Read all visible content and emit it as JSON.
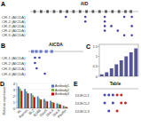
{
  "chart_data": [
    {
      "type": "track",
      "annotations": [
        "A"
      ],
      "title": "AID",
      "xlim": [
        0,
        10
      ],
      "exons": [
        0.3,
        0.9,
        1.5,
        2.1,
        2.7,
        3.3,
        3.9,
        4.5,
        5.1,
        5.7,
        6.3,
        6.9,
        7.5,
        8.1,
        8.7,
        9.2
      ],
      "exon_width": 0.22,
      "exon_color": "#555555",
      "categories": [
        "CR-1 (AICDA)",
        "CR-2 (AICDA)",
        "CR-3 (AICDA)",
        "CR-4 (AICDA)",
        "CR-5 (AICDA)"
      ],
      "series": [
        {
          "color": "#4444aa",
          "x": [
            [
              3.3,
              5.1,
              6.9,
              8.7,
              9.4
            ],
            [
              5.1,
              6.9
            ],
            [
              6.9,
              7.5,
              9.4
            ],
            [
              6.9,
              8.1
            ],
            [
              8.7,
              9.4
            ]
          ]
        }
      ]
    },
    {
      "type": "track",
      "annotations": [
        "B"
      ],
      "title": "AICDA",
      "xlim": [
        0,
        10
      ],
      "exons": [
        0.5,
        1.2,
        2.0,
        3.0,
        4.0
      ],
      "exon_width": 0.5,
      "exon_color": "#6677cc",
      "categories": [
        "CR-1 (AICDA)",
        "CR-2 (AICDA)",
        "CR-3 (AICDA)",
        "CR-4 (AICDA)"
      ],
      "series": [
        {
          "color": "#4444aa",
          "x": [
            [
              1.2,
              2.0
            ],
            [
              1.2
            ],
            [
              1.5
            ],
            [
              3.0
            ]
          ]
        }
      ]
    },
    {
      "type": "bar",
      "annotations": [
        "C"
      ],
      "categories": [
        null,
        null,
        null,
        null,
        null,
        null,
        null,
        null
      ],
      "values": [
        0.1,
        0.2,
        0.4,
        0.6,
        0.8,
        1.0,
        1.2,
        1.4
      ],
      "color": "#555599",
      "ylim": [
        0,
        1.6
      ],
      "yticks": [
        0,
        0.5,
        1,
        1.5
      ],
      "tick_labels": "y"
    },
    {
      "type": "bar",
      "annotations": [
        "D"
      ],
      "categories": [
        "RL",
        "Ramos",
        "BL2",
        "BJAB",
        "Daudi",
        "DHL4",
        "DHL6",
        "Pfeiffer"
      ],
      "series": [
        {
          "name": "Antibody1",
          "color": "#4472c4",
          "values": [
            3.5,
            3.1,
            2.4,
            1.9,
            1.5,
            1.2,
            0.8,
            0.4
          ]
        },
        {
          "name": "Antibody2",
          "color": "#70ad47",
          "values": [
            3.2,
            2.7,
            2.1,
            1.6,
            1.2,
            1.0,
            0.7,
            0.3
          ]
        },
        {
          "name": "Antibody3",
          "color": "#c00000",
          "values": [
            2.8,
            2.4,
            1.8,
            1.4,
            1.1,
            0.9,
            0.6,
            0.2
          ]
        }
      ],
      "ylabel": "Relative expression",
      "ylim": [
        0,
        4.0
      ],
      "yticks": [
        0,
        1,
        2,
        3,
        4
      ],
      "grid": true,
      "legend": "upper right"
    },
    {
      "type": "track",
      "annotations": [
        "E"
      ],
      "title": "Table",
      "xlim": [
        0,
        10
      ],
      "categories": [
        "DLBCL1",
        "DLBCL2",
        "DLBCL3"
      ],
      "series": [
        {
          "color": "#4444bb",
          "x": [
            [
              2.7,
              3.6,
              4.5
            ],
            [
              2.7,
              4.5
            ],
            [
              3.6
            ]
          ]
        },
        {
          "color": "#cc2222",
          "x": [
            [
              5.4,
              6.3
            ],
            [
              6.3,
              7.2
            ],
            [
              5.4
            ]
          ]
        }
      ]
    }
  ]
}
